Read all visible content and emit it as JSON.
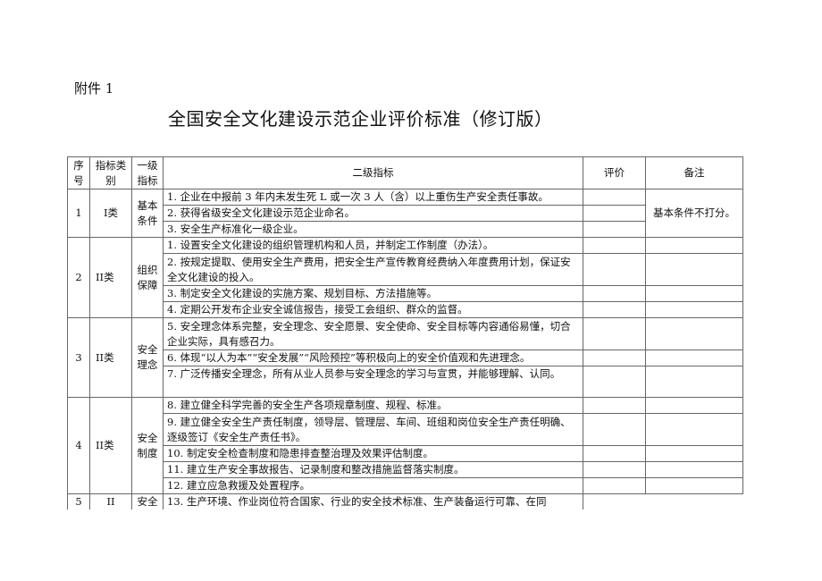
{
  "annex_label": "附件 1",
  "title": "全国安全文化建设示范企业评价标准（修订版）",
  "headers": {
    "seq": "序号",
    "type": "指标类别",
    "level1": "一级指标",
    "level2": "二级指标",
    "eval": "评价",
    "remark": "备注"
  },
  "groups": [
    {
      "seq": "1",
      "type": "I类",
      "level1": "基本条件",
      "remark": "基本条件不打分。",
      "items": [
        "1. 企业在中报前 3 年内未发生死 L 或一次 3 人（含）以上重伤生产安全责任事故。",
        "2. 获得省级安全文化建设示范企业命名。",
        "3. 安全生产标准化一级企业。"
      ]
    },
    {
      "seq": "2",
      "type": "II类",
      "level1": "组织保障",
      "items": [
        "1. 设置安全文化建设的组织管理机构和人员，并制定工作制度（办法）。",
        "2. 按规定提取、使用安全生产费用，把安全生产宣传教育经费纳入年度费用计划，保证安全文化建设的投入。",
        "3. 制定安全文化建设的实施方案、规划目标、方法措施等。",
        "4. 定期公开发布企业安全诚信报告，接受工会组织、群众的监督。"
      ]
    },
    {
      "seq": "3",
      "type": "II类",
      "level1": "安全理念",
      "items": [
        "5. 安全理念体系完整，安全理念、安全愿景、安全使命、安全目标等内容通俗易懂，切合企业实际，具有感召力。",
        "6. 体现“以人为本”“安全发展”“风险预控”等积极向上的安全价值观和先进理念。",
        "7. 广泛传播安全理念，所有从业人员参与安全理念的学习与宣贯，并能够理解、认同。"
      ]
    },
    {
      "seq": "4",
      "type": "II类",
      "level1": "安全制度",
      "items": [
        "8. 建立健全科学完善的安全生产各项规章制度、规程、标准。",
        "9. 建立健全安全生产责任制度，领导层、管理层、车间、班组和岗位安全生产责任明确、逐级签订《安全生产责任书》。",
        "10. 制定安全检查制度和隐患排查整治理及效果评估制度。",
        "11. 建立生产安全事故报告、记录制度和整改措施监督落实制度。",
        "12. 建立应急救援及处置程序。"
      ]
    },
    {
      "seq": "5",
      "type": "II",
      "level1": "安全",
      "items": [
        "13. 生产环境、作业岗位符合国家、行业的安全技术标准、生产装备运行可靠、在同"
      ]
    }
  ]
}
